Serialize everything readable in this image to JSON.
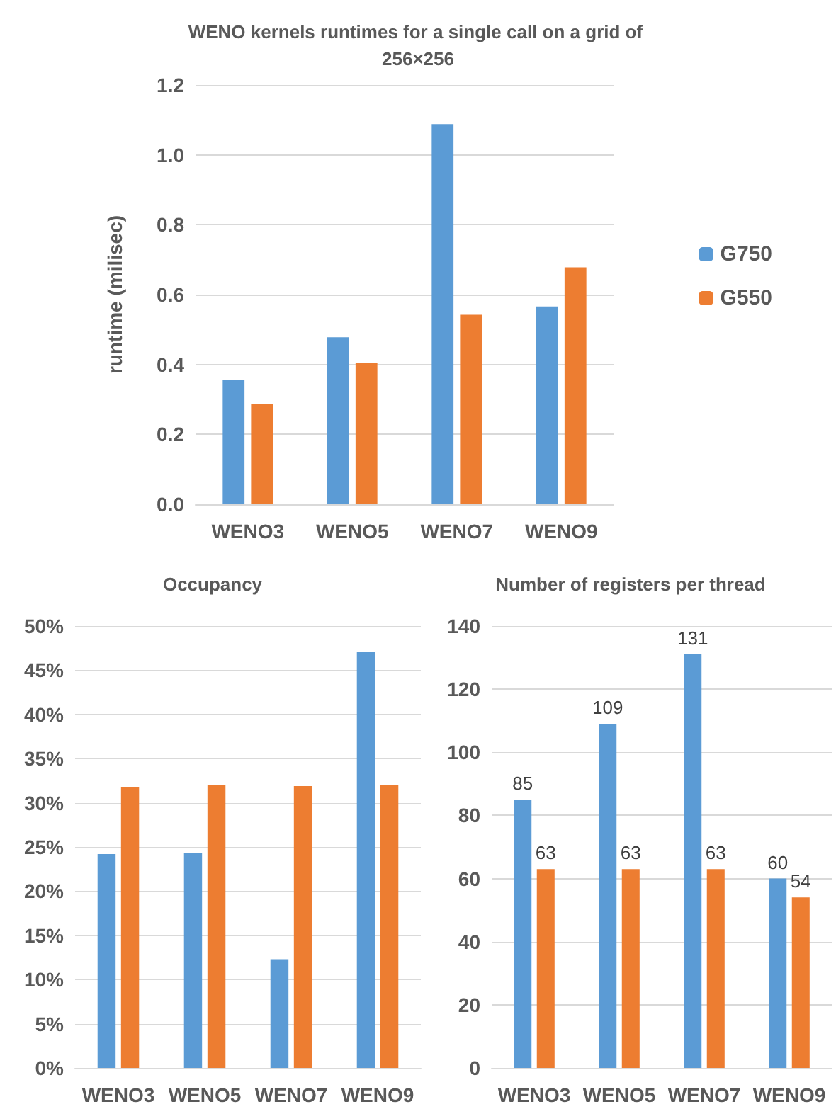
{
  "chart_data": [
    {
      "type": "bar",
      "title": "WENO kernels runtimes for a single call on a grid of 256×256",
      "ylabel": "runtime (milisec)",
      "categories": [
        "WENO3",
        "WENO5",
        "WENO7",
        "WENO9"
      ],
      "series": [
        {
          "name": "G750",
          "color": "#5b9bd5",
          "values": [
            0.357,
            0.478,
            1.088,
            0.566
          ]
        },
        {
          "name": "G550",
          "color": "#ed7d31",
          "values": [
            0.286,
            0.405,
            0.542,
            0.678
          ]
        }
      ],
      "ylim": [
        0,
        1.2
      ],
      "yticks": [
        {
          "value": 0,
          "label": "0.0"
        },
        0.2,
        0.4,
        0.6,
        0.8,
        {
          "value": 1,
          "label": "1.0"
        },
        1.2
      ],
      "grid": "y",
      "legend": "right"
    },
    {
      "type": "bar",
      "title": "Occupancy",
      "categories": [
        "WENO3",
        "WENO5",
        "WENO7",
        "WENO9"
      ],
      "series": [
        {
          "color": "#5b9bd5",
          "values": [
            24.2,
            24.3,
            12.3,
            47.1
          ]
        },
        {
          "color": "#ed7d31",
          "values": [
            31.8,
            32.0,
            31.9,
            32.0
          ]
        }
      ],
      "ylim": [
        0,
        50
      ],
      "yticks": [
        {
          "value": 0,
          "label": "0%"
        },
        {
          "value": 5,
          "label": "5%"
        },
        {
          "value": 10,
          "label": "10%"
        },
        {
          "value": 15,
          "label": "15%"
        },
        {
          "value": 20,
          "label": "20%"
        },
        {
          "value": 25,
          "label": "25%"
        },
        {
          "value": 30,
          "label": "30%"
        },
        {
          "value": 35,
          "label": "35%"
        },
        {
          "value": 40,
          "label": "40%"
        },
        {
          "value": 45,
          "label": "45%"
        },
        {
          "value": 50,
          "label": "50%"
        }
      ],
      "grid": "y"
    },
    {
      "type": "bar",
      "title": "Number of registers per thread",
      "categories": [
        "WENO3",
        "WENO5",
        "WENO7",
        "WENO9"
      ],
      "series": [
        {
          "color": "#5b9bd5",
          "values": [
            85,
            109,
            131,
            60
          ]
        },
        {
          "color": "#ed7d31",
          "values": [
            63,
            63,
            63,
            54
          ]
        }
      ],
      "ylim": [
        0,
        140
      ],
      "yticks": [
        0,
        20,
        40,
        60,
        80,
        100,
        120,
        140
      ],
      "grid": "y",
      "data_labels": true
    }
  ]
}
